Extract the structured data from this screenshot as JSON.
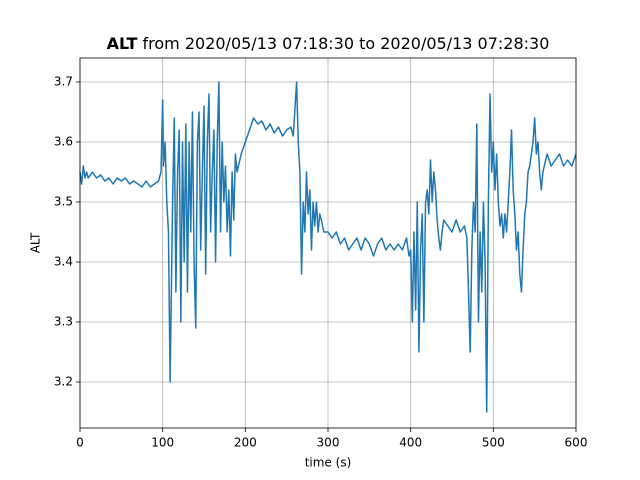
{
  "chart_data": {
    "type": "line",
    "title_bold": "ALT",
    "title": "from 2020/05/13 07:18:30 to 2020/05/13 07:28:30",
    "x_label": "time (s)",
    "y_label": "ALT",
    "xlim": [
      0,
      600
    ],
    "xticks": [
      0,
      100,
      200,
      300,
      400,
      500,
      600
    ],
    "ylim": [
      3.1233,
      3.74
    ],
    "yticks": [
      3.2,
      3.3,
      3.4,
      3.5,
      3.6,
      3.7
    ],
    "grid": true,
    "series": [
      {
        "color": "#1f77b4",
        "x": [
          0,
          2,
          4,
          6,
          8,
          10,
          15,
          20,
          25,
          30,
          35,
          40,
          45,
          50,
          55,
          60,
          65,
          70,
          75,
          80,
          85,
          90,
          95,
          98,
          100,
          101,
          103,
          105,
          107,
          109,
          110,
          112,
          114,
          116,
          118,
          120,
          122,
          124,
          126,
          128,
          130,
          132,
          134,
          136,
          138,
          140,
          142,
          144,
          146,
          148,
          150,
          152,
          154,
          156,
          158,
          160,
          162,
          164,
          166,
          168,
          170,
          172,
          174,
          176,
          178,
          180,
          182,
          184,
          186,
          188,
          190,
          195,
          200,
          205,
          210,
          215,
          220,
          225,
          230,
          235,
          240,
          245,
          250,
          255,
          258,
          262,
          264,
          266,
          268,
          270,
          272,
          274,
          276,
          278,
          280,
          282,
          284,
          286,
          288,
          290,
          292,
          295,
          300,
          305,
          310,
          315,
          320,
          325,
          330,
          335,
          340,
          345,
          350,
          355,
          360,
          365,
          370,
          375,
          380,
          385,
          390,
          395,
          398,
          400,
          402,
          404,
          406,
          408,
          410,
          412,
          414,
          416,
          418,
          420,
          422,
          424,
          426,
          428,
          430,
          432,
          434,
          436,
          438,
          440,
          445,
          450,
          455,
          460,
          465,
          468,
          470,
          472,
          474,
          476,
          478,
          480,
          482,
          484,
          486,
          488,
          490,
          492,
          494,
          496,
          498,
          500,
          502,
          504,
          506,
          508,
          510,
          512,
          514,
          516,
          518,
          520,
          522,
          524,
          526,
          528,
          530,
          532,
          534,
          536,
          538,
          540,
          542,
          544,
          546,
          548,
          550,
          552,
          554,
          556,
          558,
          560,
          565,
          570,
          575,
          580,
          585,
          590,
          595,
          600
        ],
        "values": [
          3.55,
          3.53,
          3.56,
          3.54,
          3.55,
          3.54,
          3.55,
          3.54,
          3.545,
          3.535,
          3.54,
          3.53,
          3.54,
          3.535,
          3.54,
          3.53,
          3.535,
          3.53,
          3.525,
          3.535,
          3.525,
          3.53,
          3.535,
          3.55,
          3.67,
          3.56,
          3.6,
          3.5,
          3.45,
          3.2,
          3.3,
          3.5,
          3.64,
          3.35,
          3.55,
          3.62,
          3.3,
          3.6,
          3.4,
          3.63,
          3.35,
          3.6,
          3.45,
          3.65,
          3.4,
          3.29,
          3.6,
          3.65,
          3.42,
          3.55,
          3.66,
          3.38,
          3.6,
          3.68,
          3.45,
          3.55,
          3.62,
          3.4,
          3.6,
          3.7,
          3.45,
          3.6,
          3.5,
          3.56,
          3.45,
          3.52,
          3.41,
          3.55,
          3.47,
          3.58,
          3.55,
          3.58,
          3.6,
          3.62,
          3.64,
          3.63,
          3.635,
          3.62,
          3.63,
          3.615,
          3.625,
          3.61,
          3.62,
          3.625,
          3.61,
          3.7,
          3.6,
          3.55,
          3.38,
          3.5,
          3.45,
          3.55,
          3.48,
          3.52,
          3.42,
          3.5,
          3.46,
          3.5,
          3.45,
          3.48,
          3.47,
          3.45,
          3.45,
          3.44,
          3.45,
          3.43,
          3.44,
          3.42,
          3.43,
          3.44,
          3.42,
          3.44,
          3.43,
          3.41,
          3.43,
          3.44,
          3.42,
          3.43,
          3.42,
          3.43,
          3.42,
          3.44,
          3.41,
          3.42,
          3.3,
          3.45,
          3.32,
          3.5,
          3.25,
          3.42,
          3.48,
          3.3,
          3.5,
          3.52,
          3.48,
          3.57,
          3.5,
          3.55,
          3.52,
          3.47,
          3.44,
          3.42,
          3.45,
          3.47,
          3.46,
          3.45,
          3.47,
          3.45,
          3.46,
          3.44,
          3.35,
          3.25,
          3.42,
          3.5,
          3.45,
          3.63,
          3.3,
          3.45,
          3.35,
          3.5,
          3.4,
          3.15,
          3.5,
          3.68,
          3.55,
          3.6,
          3.52,
          3.58,
          3.5,
          3.46,
          3.48,
          3.44,
          3.48,
          3.45,
          3.5,
          3.55,
          3.62,
          3.52,
          3.48,
          3.42,
          3.45,
          3.38,
          3.35,
          3.42,
          3.48,
          3.5,
          3.55,
          3.56,
          3.58,
          3.6,
          3.64,
          3.58,
          3.6,
          3.55,
          3.52,
          3.55,
          3.58,
          3.56,
          3.57,
          3.58,
          3.56,
          3.57,
          3.56,
          3.58
        ]
      }
    ]
  }
}
